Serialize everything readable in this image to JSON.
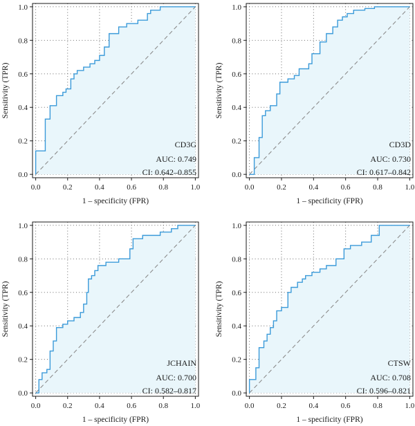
{
  "chart_data": [
    {
      "type": "line",
      "title": "",
      "xlabel": "1 – specificity (FPR)",
      "ylabel": "Sensitivity (TPR)",
      "xlim": [
        0,
        1
      ],
      "ylim": [
        0,
        1
      ],
      "xticks": [
        "0.0",
        "0.2",
        "0.4",
        "0.6",
        "0.8",
        "1.0"
      ],
      "yticks": [
        "0.0",
        "0.2",
        "0.4",
        "0.6",
        "0.8",
        "1.0"
      ],
      "grid": true,
      "annotations": [
        "CD3G",
        "AUC: 0.749",
        "CI: 0.642–0.855"
      ],
      "series": [
        {
          "x": [
            0,
            0,
            0.06,
            0.06,
            0.09,
            0.09,
            0.13,
            0.13,
            0.17,
            0.17,
            0.19,
            0.19,
            0.22,
            0.22,
            0.24,
            0.24,
            0.26,
            0.26,
            0.3,
            0.3,
            0.34,
            0.34,
            0.37,
            0.37,
            0.4,
            0.4,
            0.43,
            0.43,
            0.46,
            0.46,
            0.52,
            0.52,
            0.57,
            0.57,
            0.64,
            0.64,
            0.7,
            0.7,
            0.72,
            0.72,
            0.78,
            0.78,
            1.0
          ],
          "y": [
            0,
            0.14,
            0.14,
            0.33,
            0.33,
            0.41,
            0.41,
            0.47,
            0.47,
            0.49,
            0.49,
            0.51,
            0.51,
            0.57,
            0.57,
            0.6,
            0.6,
            0.62,
            0.62,
            0.64,
            0.64,
            0.66,
            0.66,
            0.68,
            0.68,
            0.71,
            0.71,
            0.76,
            0.76,
            0.84,
            0.84,
            0.88,
            0.88,
            0.9,
            0.9,
            0.92,
            0.92,
            0.96,
            0.96,
            0.98,
            0.98,
            1.0,
            1.0
          ]
        },
        {
          "x": [
            0,
            1
          ],
          "y": [
            0,
            1
          ],
          "style": "dashed"
        }
      ]
    },
    {
      "type": "line",
      "title": "",
      "xlabel": "1 – specificity (FPR)",
      "ylabel": "Sensitivity (TPR)",
      "xlim": [
        0,
        1
      ],
      "ylim": [
        0,
        1
      ],
      "xticks": [
        "0.0",
        "0.2",
        "0.4",
        "0.6",
        "0.8",
        "1.0"
      ],
      "yticks": [
        "0.0",
        "0.2",
        "0.4",
        "0.6",
        "0.8",
        "1.0"
      ],
      "grid": true,
      "annotations": [
        "CD3D",
        "AUC: 0.730",
        "CI: 0.617–0.842"
      ],
      "series": [
        {
          "x": [
            0,
            0.03,
            0.03,
            0.06,
            0.06,
            0.08,
            0.08,
            0.1,
            0.1,
            0.13,
            0.13,
            0.17,
            0.17,
            0.19,
            0.19,
            0.24,
            0.24,
            0.28,
            0.28,
            0.31,
            0.31,
            0.37,
            0.37,
            0.39,
            0.39,
            0.44,
            0.44,
            0.48,
            0.48,
            0.52,
            0.52,
            0.55,
            0.55,
            0.58,
            0.58,
            0.61,
            0.61,
            0.65,
            0.65,
            0.72,
            0.72,
            0.78,
            0.78,
            1.0
          ],
          "y": [
            0,
            0,
            0.1,
            0.1,
            0.22,
            0.22,
            0.35,
            0.35,
            0.38,
            0.38,
            0.41,
            0.41,
            0.48,
            0.48,
            0.55,
            0.55,
            0.57,
            0.57,
            0.59,
            0.59,
            0.63,
            0.63,
            0.66,
            0.66,
            0.72,
            0.72,
            0.79,
            0.79,
            0.84,
            0.84,
            0.88,
            0.88,
            0.92,
            0.92,
            0.94,
            0.94,
            0.96,
            0.96,
            0.98,
            0.98,
            0.99,
            0.99,
            1.0,
            1.0
          ]
        },
        {
          "x": [
            0,
            1
          ],
          "y": [
            0,
            1
          ],
          "style": "dashed"
        }
      ]
    },
    {
      "type": "line",
      "title": "",
      "xlabel": "1 – specificity (FPR)",
      "ylabel": "Sensitivity (TPR)",
      "xlim": [
        0,
        1
      ],
      "ylim": [
        0,
        1
      ],
      "xticks": [
        "0.0",
        "0.2",
        "0.4",
        "0.6",
        "0.8",
        "1.0"
      ],
      "yticks": [
        "0.0",
        "0.2",
        "0.4",
        "0.6",
        "0.8",
        "1.0"
      ],
      "grid": true,
      "annotations": [
        "JCHAIN",
        "AUC: 0.700",
        "CI: 0.582–0.817"
      ],
      "series": [
        {
          "x": [
            0,
            0.02,
            0.02,
            0.04,
            0.04,
            0.07,
            0.07,
            0.09,
            0.09,
            0.11,
            0.11,
            0.13,
            0.13,
            0.17,
            0.17,
            0.2,
            0.2,
            0.24,
            0.24,
            0.28,
            0.28,
            0.3,
            0.3,
            0.32,
            0.32,
            0.33,
            0.33,
            0.35,
            0.35,
            0.37,
            0.37,
            0.39,
            0.39,
            0.44,
            0.44,
            0.52,
            0.52,
            0.59,
            0.59,
            0.61,
            0.61,
            0.67,
            0.67,
            0.78,
            0.78,
            0.85,
            0.85,
            0.89,
            0.89,
            0.93,
            0.93,
            1.0
          ],
          "y": [
            0,
            0,
            0.08,
            0.08,
            0.12,
            0.12,
            0.14,
            0.14,
            0.25,
            0.25,
            0.31,
            0.31,
            0.39,
            0.39,
            0.41,
            0.41,
            0.43,
            0.43,
            0.45,
            0.45,
            0.48,
            0.48,
            0.53,
            0.53,
            0.6,
            0.6,
            0.68,
            0.68,
            0.7,
            0.7,
            0.73,
            0.73,
            0.76,
            0.76,
            0.78,
            0.78,
            0.8,
            0.8,
            0.86,
            0.86,
            0.92,
            0.92,
            0.94,
            0.94,
            0.96,
            0.96,
            0.98,
            0.98,
            1.0,
            1.0,
            1.0,
            1.0
          ]
        },
        {
          "x": [
            0,
            1
          ],
          "y": [
            0,
            1
          ],
          "style": "dashed"
        }
      ]
    },
    {
      "type": "line",
      "title": "",
      "xlabel": "1 – specificity (FPR)",
      "ylabel": "Sensitivity (TPR)",
      "xlim": [
        0,
        1
      ],
      "ylim": [
        0,
        1
      ],
      "xticks": [
        "0.0",
        "0.2",
        "0.4",
        "0.6",
        "0.8",
        "1.0"
      ],
      "yticks": [
        "0.0",
        "0.2",
        "0.4",
        "0.6",
        "0.8",
        "1.0"
      ],
      "grid": true,
      "annotations": [
        "CTSW",
        "AUC: 0.708",
        "CI: 0.596–0.821"
      ],
      "series": [
        {
          "x": [
            0,
            0,
            0.04,
            0.04,
            0.06,
            0.06,
            0.09,
            0.09,
            0.11,
            0.11,
            0.13,
            0.13,
            0.15,
            0.15,
            0.17,
            0.17,
            0.2,
            0.2,
            0.24,
            0.24,
            0.26,
            0.26,
            0.3,
            0.3,
            0.33,
            0.33,
            0.35,
            0.35,
            0.39,
            0.39,
            0.44,
            0.44,
            0.48,
            0.48,
            0.54,
            0.54,
            0.59,
            0.59,
            0.63,
            0.63,
            0.7,
            0.7,
            0.76,
            0.76,
            0.81,
            0.81,
            1.0
          ],
          "y": [
            0,
            0.08,
            0.08,
            0.15,
            0.15,
            0.27,
            0.27,
            0.31,
            0.31,
            0.35,
            0.35,
            0.39,
            0.39,
            0.43,
            0.43,
            0.49,
            0.49,
            0.51,
            0.51,
            0.6,
            0.6,
            0.63,
            0.63,
            0.66,
            0.66,
            0.68,
            0.68,
            0.7,
            0.7,
            0.72,
            0.72,
            0.74,
            0.74,
            0.76,
            0.76,
            0.8,
            0.8,
            0.86,
            0.86,
            0.88,
            0.88,
            0.9,
            0.9,
            0.94,
            0.94,
            1.0,
            1.0
          ]
        },
        {
          "x": [
            0,
            1
          ],
          "y": [
            0,
            1
          ],
          "style": "dashed"
        }
      ]
    }
  ],
  "colors": {
    "roc_line": "#3a9ad9",
    "roc_fill": "#e9f6fb",
    "diagonal": "#8c8c8c",
    "grid": "#555555",
    "axis": "#1a1a1a"
  }
}
